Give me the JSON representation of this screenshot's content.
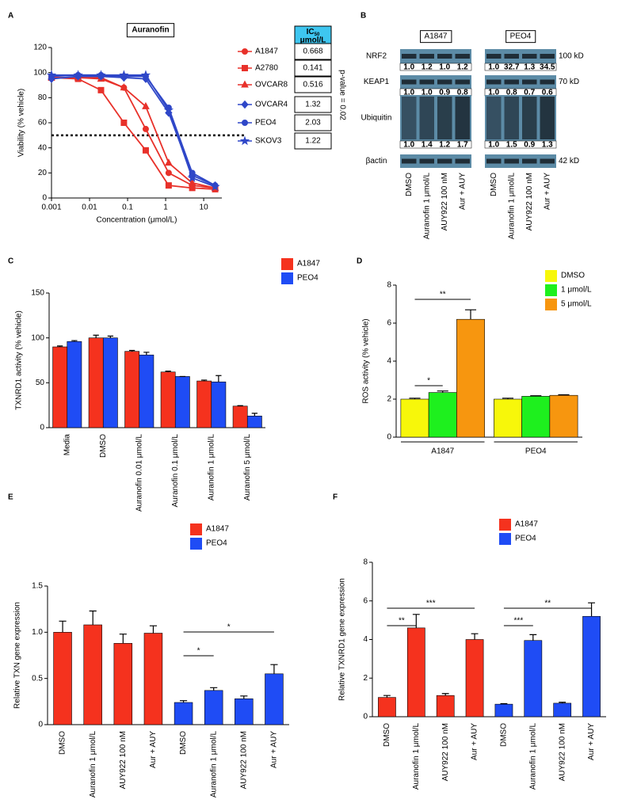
{
  "chart_data": [
    {
      "panel": "A",
      "type": "line",
      "title": "Auranofin",
      "xlabel": "Concentration (μmol/L)",
      "ylabel": "Viability (% vehicle)",
      "log_x": true,
      "x": [
        0.001,
        0.005,
        0.02,
        0.08,
        0.3,
        1.2,
        5,
        20
      ],
      "xlim": [
        0.001,
        30
      ],
      "xticks": [
        0.001,
        0.01,
        0.1,
        1,
        10
      ],
      "ylim": [
        0,
        120
      ],
      "yticks": [
        0,
        20,
        40,
        60,
        80,
        100,
        120
      ],
      "reference_line": 50,
      "series": [
        {
          "name": "A1847",
          "color": "#e8312a",
          "marker": "circle",
          "values": [
            96,
            96,
            96,
            88,
            55,
            20,
            10,
            8
          ]
        },
        {
          "name": "A2780",
          "color": "#e8312a",
          "marker": "square",
          "values": [
            96,
            95,
            86,
            60,
            38,
            10,
            8,
            7
          ]
        },
        {
          "name": "OVCAR8",
          "color": "#e8312a",
          "marker": "triangle",
          "values": [
            96,
            96,
            95,
            88,
            73,
            28,
            12,
            8
          ]
        },
        {
          "name": "OVCAR4",
          "color": "#2f47c8",
          "marker": "diamond",
          "values": [
            95,
            97,
            97,
            96,
            95,
            68,
            18,
            10
          ]
        },
        {
          "name": "PEO4",
          "color": "#2f47c8",
          "marker": "circle",
          "values": [
            97,
            98,
            98,
            97,
            97,
            72,
            20,
            10
          ]
        },
        {
          "name": "SKOV3",
          "color": "#2f47c8",
          "marker": "star",
          "values": [
            98,
            98,
            98,
            98,
            98,
            70,
            16,
            9
          ]
        }
      ],
      "ic50_label": "IC",
      "ic50_sub": "50",
      "ic50_unit": "μmol/L",
      "ic50_values": [
        "0.668",
        "0.141",
        "0.516",
        "1.32",
        "2.03",
        "1.22"
      ],
      "annotation": "p-value = 0.02"
    },
    {
      "panel": "C",
      "type": "bar",
      "ylabel": "TXNRD1 activity (% vehicle)",
      "ylim": [
        0,
        150
      ],
      "yticks": [
        0,
        50,
        100,
        150
      ],
      "categories": [
        "Media",
        "DMSO",
        "Auranofin 0.01 μmol/L",
        "Auranofin 0.1 μmol/L",
        "Auranofin 1 μmol/L",
        "Auranofin 5 μmol/L"
      ],
      "series": [
        {
          "name": "A1847",
          "color": "#f5321e",
          "values": [
            90,
            100,
            85,
            62,
            52,
            24
          ],
          "errors": [
            1,
            3,
            1,
            1,
            1,
            0.5
          ]
        },
        {
          "name": "PEO4",
          "color": "#1f4cf5",
          "values": [
            96,
            100,
            81,
            57,
            51,
            13
          ],
          "errors": [
            1,
            2,
            3,
            0,
            7,
            3
          ]
        }
      ]
    },
    {
      "panel": "D",
      "type": "bar",
      "ylabel": "ROS activity (% vehicle)",
      "ylim": [
        0,
        8
      ],
      "yticks": [
        0,
        2,
        4,
        6,
        8
      ],
      "categories": [
        "A1847",
        "PEO4"
      ],
      "series": [
        {
          "name": "DMSO",
          "color": "#f7f70a",
          "values": [
            2.0,
            2.0
          ],
          "errors": [
            0.05,
            0.05
          ]
        },
        {
          "name": "1 μmol/L",
          "color": "#1ef01e",
          "values": [
            2.35,
            2.15
          ],
          "errors": [
            0.08,
            0.03
          ]
        },
        {
          "name": "5 μmol/L",
          "color": "#f7960f",
          "values": [
            6.2,
            2.2
          ],
          "errors": [
            0.5,
            0.03
          ]
        }
      ],
      "annotations": [
        "*",
        "**"
      ]
    },
    {
      "panel": "E",
      "type": "bar",
      "ylabel": "Relative TXN gene expression",
      "ylim": [
        0,
        1.5
      ],
      "yticks": [
        0,
        0.5,
        {
          "value": 1,
          "label": "1.0"
        },
        1.5
      ],
      "categories": [
        "DMSO",
        "Auranofin 1 μmol/L",
        "AUY922 100 nM",
        "Aur + AUY",
        "DMSO",
        "Auranofin 1 μmol/L",
        "AUY922 100 nM",
        "Aur + AUY"
      ],
      "series": [
        {
          "name": "A1847",
          "color": "#f5321e",
          "values": [
            1.0,
            1.08,
            0.88,
            0.99,
            null,
            null,
            null,
            null
          ],
          "errors": [
            0.12,
            0.15,
            0.1,
            0.08,
            null,
            null,
            null,
            null
          ]
        },
        {
          "name": "PEO4",
          "color": "#1f4cf5",
          "values": [
            null,
            null,
            null,
            null,
            0.24,
            0.37,
            0.28,
            0.55
          ],
          "errors": [
            null,
            null,
            null,
            null,
            0.02,
            0.03,
            0.03,
            0.1
          ]
        }
      ],
      "annotations": [
        "*",
        "*"
      ]
    },
    {
      "panel": "F",
      "type": "bar",
      "ylabel": "Relative TXNRD1 gene expression",
      "ylim": [
        0,
        8
      ],
      "yticks": [
        0,
        2,
        4,
        6,
        8
      ],
      "categories": [
        "DMSO",
        "Auranofin 1 μmol/L",
        "AUY922 100 nM",
        "Aur + AUY",
        "DMSO",
        "Auranofin 1 μmol/L",
        "AUY922 100 nM",
        "Aur + AUY"
      ],
      "series": [
        {
          "name": "A1847",
          "color": "#f5321e",
          "values": [
            1.0,
            4.6,
            1.1,
            4.0,
            null,
            null,
            null,
            null
          ],
          "errors": [
            0.1,
            0.7,
            0.1,
            0.3,
            null,
            null,
            null,
            null
          ]
        },
        {
          "name": "PEO4",
          "color": "#1f4cf5",
          "values": [
            null,
            null,
            null,
            null,
            0.65,
            3.95,
            0.7,
            5.2
          ],
          "errors": [
            null,
            null,
            null,
            null,
            0.03,
            0.3,
            0.05,
            0.7
          ]
        }
      ],
      "annotations": [
        "**",
        "***",
        "***",
        "**"
      ]
    }
  ],
  "blot": {
    "panel": "B",
    "groups": [
      "A1847",
      "PEO4"
    ],
    "lanes": [
      "DMSO",
      "Auranofin 1 μmol/L",
      "AUY922 100 nM",
      "Aur + AUY"
    ],
    "rows": [
      {
        "label": "NRF2",
        "size": "100 kD",
        "quant": [
          [
            "1.0",
            "1.2",
            "1.0",
            "1.2"
          ],
          [
            "1.0",
            "32.7",
            "1.3",
            "34.5"
          ]
        ]
      },
      {
        "label": "KEAP1",
        "size": "70 kD",
        "quant": [
          [
            "1.0",
            "1.0",
            "0.9",
            "0.8"
          ],
          [
            "1.0",
            "0.8",
            "0.7",
            "0.6"
          ]
        ]
      },
      {
        "label": "Ubiquitin",
        "quant": [
          [
            "1.0",
            "1.4",
            "1.2",
            "1.7"
          ],
          [
            "1.0",
            "1.5",
            "0.9",
            "1.3"
          ]
        ]
      },
      {
        "label": "βactin",
        "size": "42 kD"
      }
    ]
  }
}
